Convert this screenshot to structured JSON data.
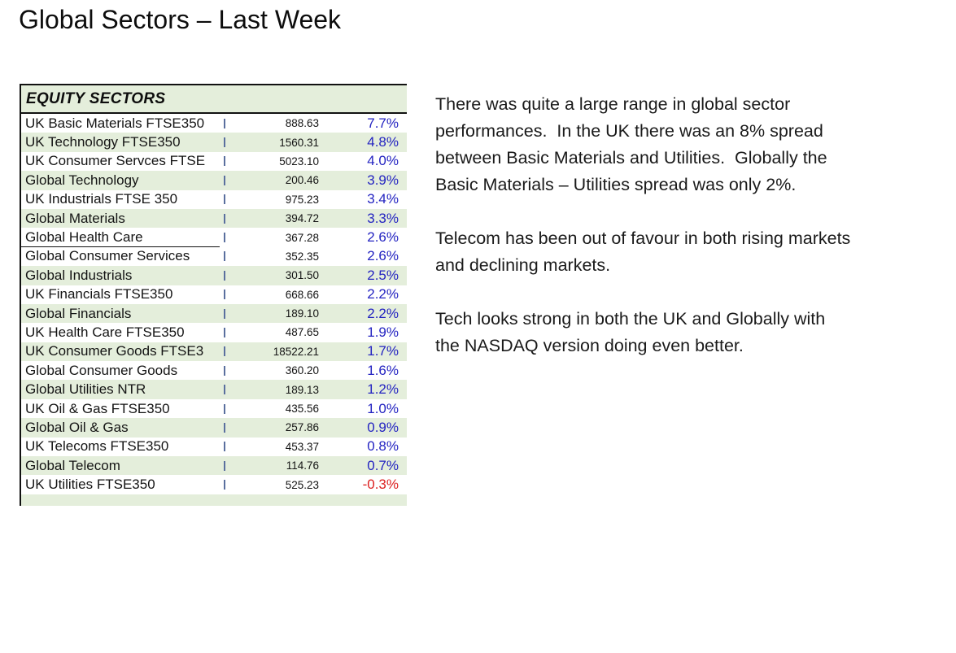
{
  "slide": {
    "title": "Global Sectors – Last Week"
  },
  "table": {
    "header": "EQUITY SECTORS",
    "colors": {
      "row_shade": "#e4eedb",
      "positive_pct": "#2323c1",
      "negative_pct": "#dc1f1f",
      "tick_mark": "#5a6f9e",
      "border": "#111111"
    },
    "rows": [
      {
        "name": "UK Basic Materials FTSE350",
        "value": "888.63",
        "pct": "7.7%",
        "shaded": false
      },
      {
        "name": "UK Technology FTSE350",
        "value": "1560.31",
        "pct": "4.8%",
        "shaded": true
      },
      {
        "name": "UK Consumer Servces FTSE",
        "value": "5023.10",
        "pct": "4.0%",
        "shaded": false
      },
      {
        "name": "Global Technology",
        "value": "200.46",
        "pct": "3.9%",
        "shaded": true
      },
      {
        "name": "UK Industrials FTSE 350",
        "value": "975.23",
        "pct": "3.4%",
        "shaded": false
      },
      {
        "name": "Global Materials",
        "value": "394.72",
        "pct": "3.3%",
        "shaded": true
      },
      {
        "name": "Global Health Care",
        "value": "367.28",
        "pct": "2.6%",
        "shaded": false,
        "underline": true
      },
      {
        "name": "Global Consumer Services",
        "value": "352.35",
        "pct": "2.6%",
        "shaded": false
      },
      {
        "name": "Global Industrials",
        "value": "301.50",
        "pct": "2.5%",
        "shaded": true
      },
      {
        "name": "UK Financials FTSE350",
        "value": "668.66",
        "pct": "2.2%",
        "shaded": false
      },
      {
        "name": "Global Financials",
        "value": "189.10",
        "pct": "2.2%",
        "shaded": true
      },
      {
        "name": "UK Health Care FTSE350",
        "value": "487.65",
        "pct": "1.9%",
        "shaded": false
      },
      {
        "name": "UK Consumer Goods FTSE3",
        "value": "18522.21",
        "pct": "1.7%",
        "shaded": true
      },
      {
        "name": "Global Consumer Goods",
        "value": "360.20",
        "pct": "1.6%",
        "shaded": false
      },
      {
        "name": "Global Utilities NTR",
        "value": "189.13",
        "pct": "1.2%",
        "shaded": true
      },
      {
        "name": "UK Oil & Gas FTSE350",
        "value": "435.56",
        "pct": "1.0%",
        "shaded": false
      },
      {
        "name": "Global Oil & Gas",
        "value": "257.86",
        "pct": "0.9%",
        "shaded": true
      },
      {
        "name": "UK Telecoms FTSE350",
        "value": "453.37",
        "pct": "0.8%",
        "shaded": false
      },
      {
        "name": "Global Telecom",
        "value": "114.76",
        "pct": "0.7%",
        "shaded": true
      },
      {
        "name": "UK Utilities FTSE350",
        "value": "525.23",
        "pct": "-0.3%",
        "shaded": false,
        "negative": true
      }
    ]
  },
  "commentary": {
    "paragraphs": [
      "There was quite a large range in global sector\nperformances.  In the UK there was an 8% spread\nbetween Basic Materials and Utilities.  Globally the\nBasic Materials – Utilities spread was only 2%.",
      "Telecom has been out of favour in both rising markets\nand declining markets.",
      "Tech looks strong in both the UK and Globally with\nthe NASDAQ version doing even better."
    ]
  }
}
